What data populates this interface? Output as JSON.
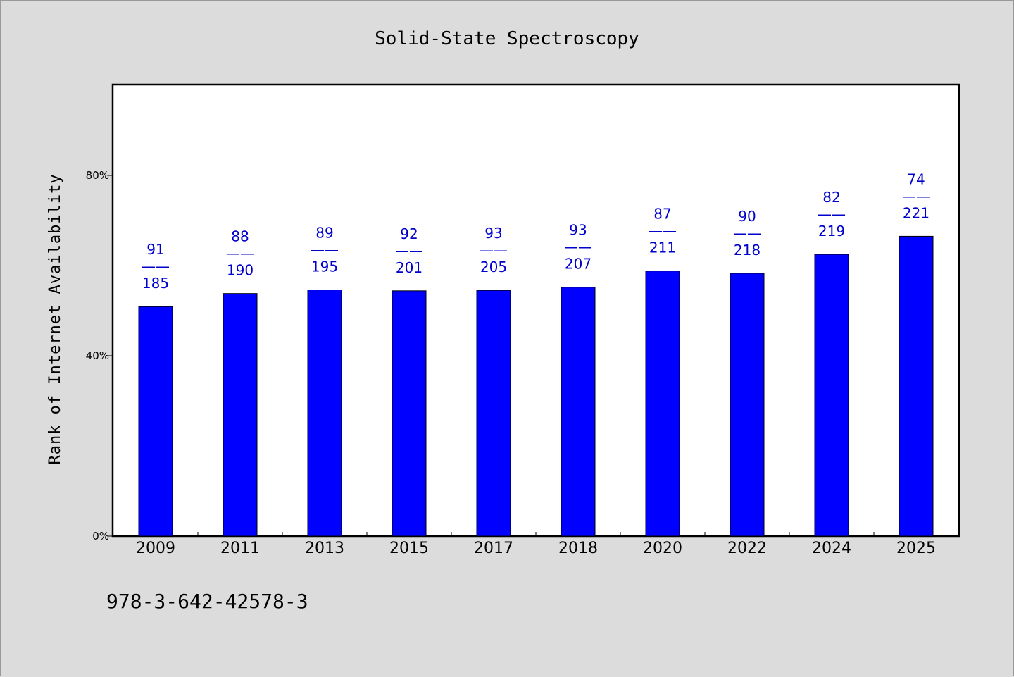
{
  "chart_data": {
    "type": "bar",
    "title": "Solid-State Spectroscopy",
    "xlabel": "",
    "ylabel": "Rank of Internet Availability",
    "categories": [
      "2009",
      "2011",
      "2013",
      "2015",
      "2017",
      "2018",
      "2020",
      "2022",
      "2024",
      "2025"
    ],
    "values": [
      50.9,
      53.8,
      54.6,
      54.4,
      54.5,
      55.2,
      58.8,
      58.3,
      62.5,
      66.5
    ],
    "data_labels": [
      {
        "top": "91",
        "sep": "——",
        "bottom": "185"
      },
      {
        "top": "88",
        "sep": "——",
        "bottom": "190"
      },
      {
        "top": "89",
        "sep": "——",
        "bottom": "195"
      },
      {
        "top": "92",
        "sep": "——",
        "bottom": "201"
      },
      {
        "top": "93",
        "sep": "——",
        "bottom": "205"
      },
      {
        "top": "93",
        "sep": "——",
        "bottom": "207"
      },
      {
        "top": "87",
        "sep": "——",
        "bottom": "211"
      },
      {
        "top": "90",
        "sep": "——",
        "bottom": "218"
      },
      {
        "top": "82",
        "sep": "——",
        "bottom": "219"
      },
      {
        "top": "74",
        "sep": "——",
        "bottom": "221"
      }
    ],
    "yticks": [
      0,
      40,
      80
    ],
    "ytick_labels": [
      "0%",
      "40%",
      "80%"
    ],
    "ylim": [
      0,
      100
    ],
    "grid": false,
    "bar_color": "#0000ff",
    "label_color": "#0000cc",
    "background": "#dcdcdc",
    "plot_background": "#ffffff"
  },
  "footer_text": "978-3-642-42578-3"
}
